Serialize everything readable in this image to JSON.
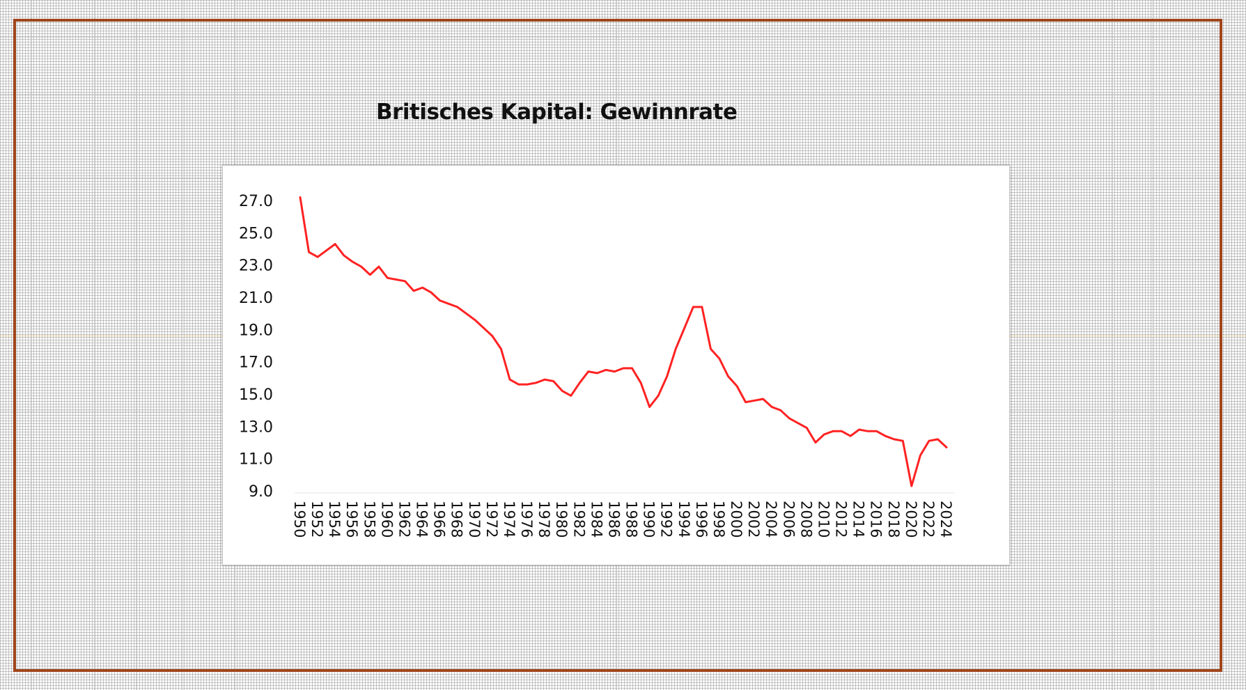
{
  "chart_data": {
    "type": "line",
    "title": "Britisches Kapital: Gewinnrate",
    "xlabel": "",
    "ylabel": "",
    "ylim": [
      9.0,
      27.0
    ],
    "yticks": [
      "27.0",
      "25.0",
      "23.0",
      "21.0",
      "19.0",
      "17.0",
      "15.0",
      "13.0",
      "11.0",
      "9.0"
    ],
    "xticks": [
      "1950",
      "1952",
      "1954",
      "1956",
      "1958",
      "1960",
      "1962",
      "1964",
      "1966",
      "1968",
      "1970",
      "1972",
      "1974",
      "1976",
      "1978",
      "1980",
      "1982",
      "1984",
      "1986",
      "1988",
      "1990",
      "1992",
      "1994",
      "1996",
      "1998",
      "2000",
      "2002",
      "2004",
      "2006",
      "2008",
      "2010",
      "2012",
      "2014",
      "2016",
      "2018",
      "2020",
      "2022",
      "2024"
    ],
    "grid": false,
    "line_color": "#ff2222",
    "x": [
      1950,
      1951,
      1952,
      1953,
      1954,
      1955,
      1956,
      1957,
      1958,
      1959,
      1960,
      1961,
      1962,
      1963,
      1964,
      1965,
      1966,
      1967,
      1968,
      1969,
      1970,
      1971,
      1972,
      1973,
      1974,
      1975,
      1976,
      1977,
      1978,
      1979,
      1980,
      1981,
      1982,
      1983,
      1984,
      1985,
      1986,
      1987,
      1988,
      1989,
      1990,
      1991,
      1992,
      1993,
      1994,
      1995,
      1996,
      1997,
      1998,
      1999,
      2000,
      2001,
      2002,
      2003,
      2004,
      2005,
      2006,
      2007,
      2008,
      2009,
      2010,
      2011,
      2012,
      2013,
      2014,
      2015,
      2016,
      2017,
      2018,
      2019,
      2020,
      2021,
      2022,
      2023,
      2024
    ],
    "values": [
      27.2,
      23.8,
      23.5,
      23.9,
      24.3,
      23.6,
      23.2,
      22.9,
      22.4,
      22.9,
      22.2,
      22.1,
      22.0,
      21.4,
      21.6,
      21.3,
      20.8,
      20.6,
      20.4,
      20.0,
      19.6,
      19.1,
      18.6,
      17.8,
      15.9,
      15.6,
      15.6,
      15.7,
      15.9,
      15.8,
      15.2,
      14.9,
      15.7,
      16.4,
      16.3,
      16.5,
      16.4,
      16.6,
      16.6,
      15.7,
      14.2,
      14.9,
      16.1,
      17.8,
      19.1,
      20.4,
      20.4,
      17.8,
      17.2,
      16.1,
      15.5,
      14.5,
      14.6,
      14.7,
      14.2,
      14.0,
      13.5,
      13.2,
      12.9,
      12.0,
      12.5,
      12.7,
      12.7,
      12.4,
      12.8,
      12.7,
      12.7,
      12.4,
      12.2,
      12.1,
      9.3,
      11.2,
      12.1,
      12.2,
      11.7
    ]
  }
}
